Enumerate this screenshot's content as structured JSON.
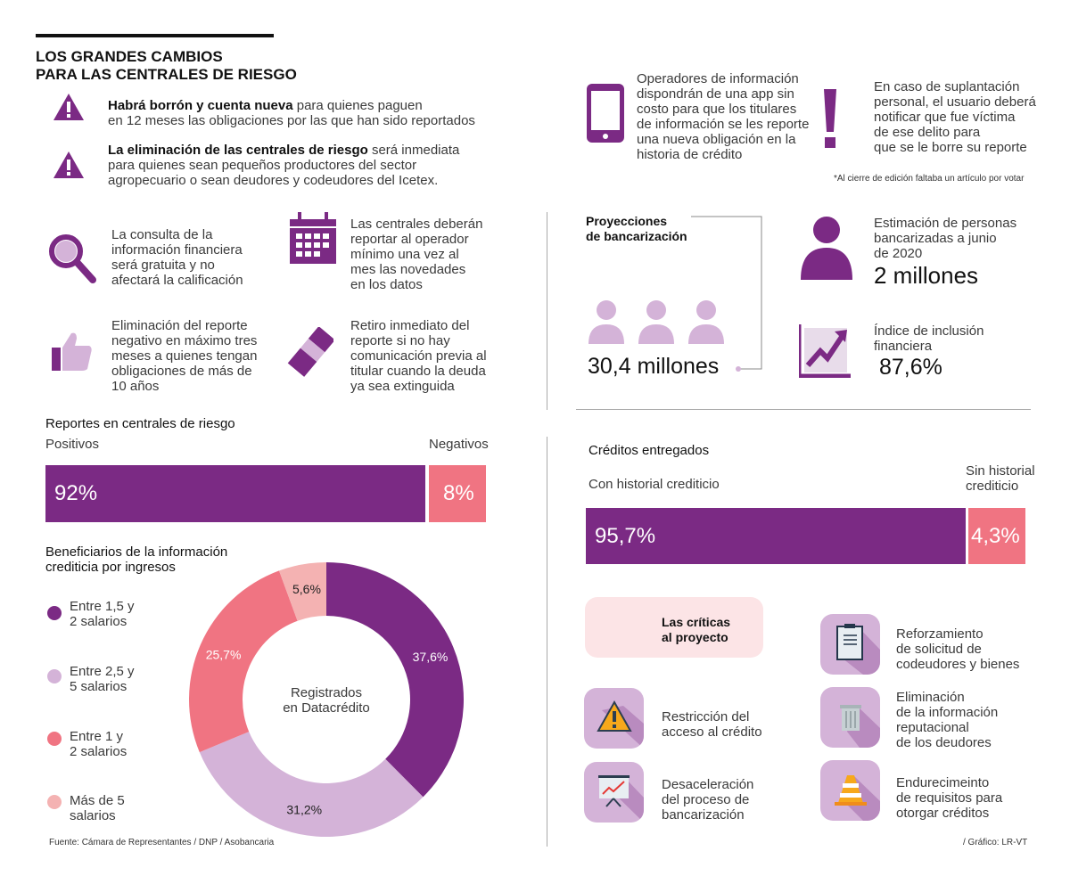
{
  "header": {
    "title": "LOS GRANDES CAMBIOS\nPARA LAS CENTRALES DE RIESGO"
  },
  "warnings": [
    {
      "bold": "Habrá borrón y cuenta nueva",
      "text": " para quienes paguen\nen 12 meses las obligaciones por las que han sido reportados",
      "icon": "warning-triangle-icon"
    },
    {
      "bold": "La eliminación de las centrales de riesgo",
      "text": " será inmediata\npara quienes sean pequeños productores del sector\nagropecuario o sean deudores y codeudores del Icetex.",
      "icon": "warning-triangle-icon"
    }
  ],
  "top_right": {
    "app": "Operadores de información\ndispondrán de una app sin\ncosto para que los titulares\nde información se les reporte\nuna nueva obligación en la\nhistoria de crédito",
    "suplantacion": "En caso de suplantación\npersonal, el usuario deberá\nnotificar que fue víctima\nde ese delito para\nque se le borre su reporte",
    "note": "*Al cierre de edición faltaba un artículo por votar"
  },
  "features": [
    {
      "text": "La consulta de la\ninformación financiera\nserá gratuita y no\nafectará la calificación",
      "icon": "magnifier-icon"
    },
    {
      "text": "Las centrales deberán\nreportar al operador\nmínimo una vez al\nmes las novedades\nen los datos",
      "icon": "calendar-icon"
    },
    {
      "text": "Eliminación del reporte\nnegativo en máximo tres\nmeses a quienes tengan\nobligaciones de más de\n10 años",
      "icon": "thumbs-up-icon"
    },
    {
      "text": "Retiro inmediato del\nreporte si no hay\ncomunicación previa al\ntitular cuando la deuda\nya sea extinguida",
      "icon": "eraser-icon"
    }
  ],
  "projections": {
    "title": "Proyecciones\nde bancarización",
    "people_value": "30,4 millones",
    "estimate_label": "Estimación de personas\nbancarizadas a junio\nde 2020",
    "estimate_value": "2 millones",
    "index_label": "Índice de inclusión\nfinanciera",
    "index_value": "87,6%"
  },
  "reportes": {
    "title": "Reportes en centrales de riesgo",
    "pos_label": "Positivos",
    "neg_label": "Negativos",
    "pos_value": "92%",
    "neg_value": "8%"
  },
  "creditos": {
    "title": "Créditos entregados",
    "con_label": "Con historial crediticio",
    "sin_label": "Sin historial\ncrediticio",
    "con_value": "95,7%",
    "sin_value": "4,3%"
  },
  "beneficiarios": {
    "title": "Beneficiarios de la información\ncrediticia por ingresos",
    "center": "Registrados\nen Datacrédito",
    "legend": [
      "Entre 1,5 y\n2 salarios",
      "Entre 2,5 y\n5 salarios",
      "Entre 1 y\n2 salarios",
      "Más de 5\nsalarios"
    ]
  },
  "criticas": {
    "title": "Las críticas\nal proyecto",
    "items": [
      {
        "text": "Restricción del\nacceso al crédito",
        "icon": "warning-sign-icon"
      },
      {
        "text": "Desaceleración\ndel proceso de\nbancarización",
        "icon": "presentation-chart-icon"
      },
      {
        "text": "Reforzamiento\nde solicitud de\ncodeudores y bienes",
        "icon": "clipboard-icon"
      },
      {
        "text": "Eliminación\nde la información\nreputacional\nde los deudores",
        "icon": "trash-icon"
      },
      {
        "text": "Endurecimeinto\nde requisitos para\notorgar créditos",
        "icon": "traffic-cone-icon"
      }
    ]
  },
  "footer": {
    "source": "Fuente: Cámara de Representantes / DNP / Asobancaria",
    "credit": "/ Gráfico: LR-VT"
  },
  "colors": {
    "purple": "#7b2a84",
    "light_purple": "#d4b3d8",
    "pink": "#f07482",
    "light_pink": "#f4b2b2"
  },
  "chart_data": [
    {
      "type": "bar",
      "title": "Reportes en centrales de riesgo",
      "categories": [
        "Positivos",
        "Negativos"
      ],
      "values": [
        92,
        8
      ],
      "labels": [
        "92%",
        "8%"
      ],
      "stacked": true
    },
    {
      "type": "bar",
      "title": "Créditos entregados",
      "categories": [
        "Con historial crediticio",
        "Sin historial crediticio"
      ],
      "values": [
        95.7,
        4.3
      ],
      "labels": [
        "95,7%",
        "4,3%"
      ],
      "stacked": true
    },
    {
      "type": "pie",
      "title": "Beneficiarios de la información crediticia por ingresos",
      "donut": true,
      "center_label": "Registrados en Datacrédito",
      "categories": [
        "Entre 1,5 y 2 salarios",
        "Entre 2,5 y 5 salarios",
        "Entre 1 y 2 salarios",
        "Más de 5 salarios"
      ],
      "values": [
        37.6,
        31.2,
        25.7,
        5.6
      ],
      "labels": [
        "37,6%",
        "31,2%",
        "25,7%",
        "5,6%"
      ],
      "colors": [
        "#7b2a84",
        "#d4b3d8",
        "#f07482",
        "#f4b2b2"
      ],
      "legend": "left"
    }
  ]
}
